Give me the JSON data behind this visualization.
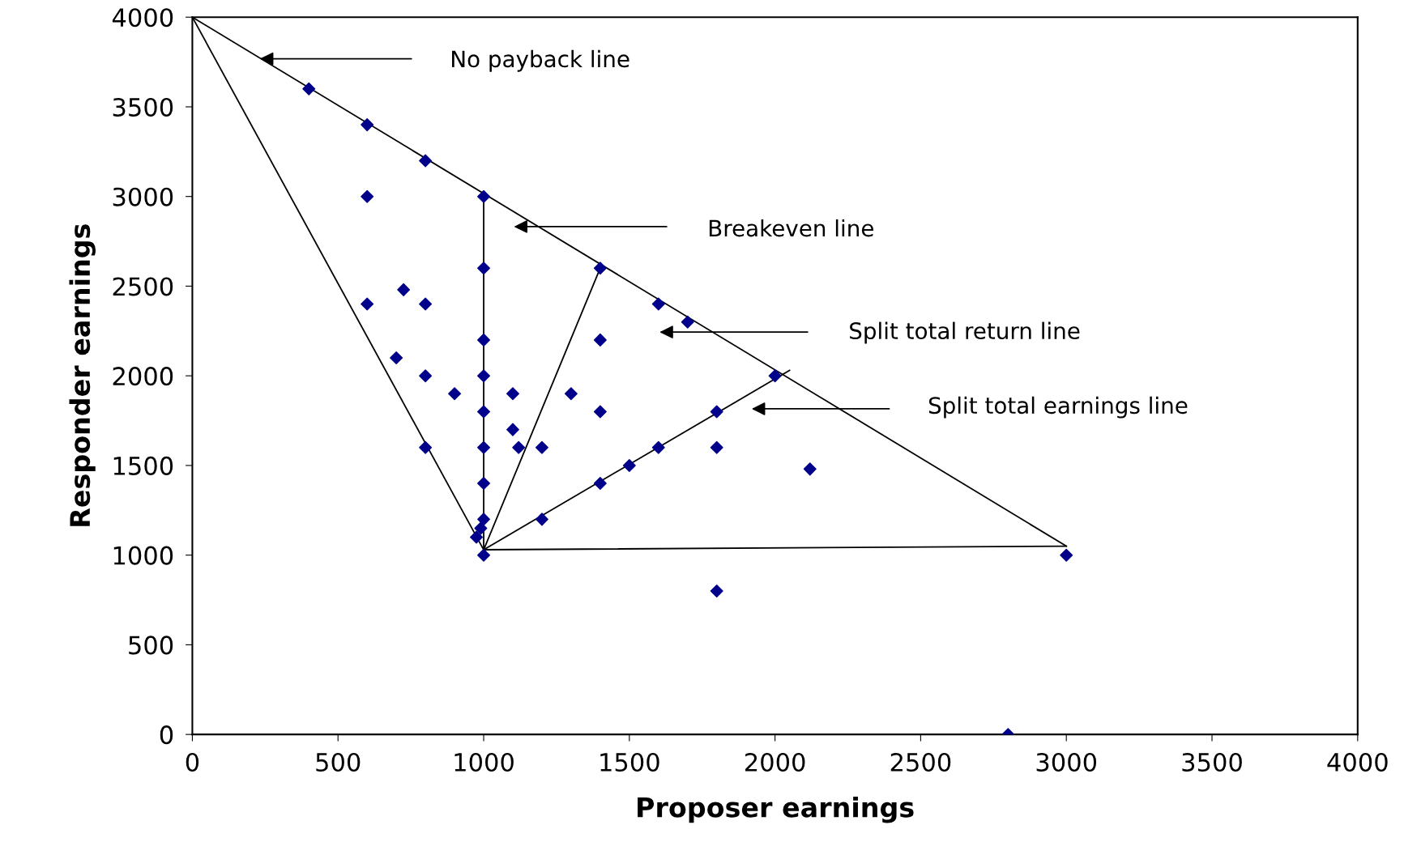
{
  "chart_data": {
    "type": "scatter",
    "xlabel": "Proposer earnings",
    "ylabel": "Responder earnings",
    "xlim": [
      0,
      4000
    ],
    "ylim": [
      0,
      4000
    ],
    "xticks": [
      0,
      500,
      1000,
      1500,
      2000,
      2500,
      3000,
      3500,
      4000
    ],
    "yticks": [
      0,
      500,
      1000,
      1500,
      2000,
      2500,
      3000,
      3500,
      4000
    ],
    "grid": false,
    "legend": false,
    "series": [
      {
        "type": "line",
        "color": "#000000",
        "marker": "none",
        "x": [
          0,
          3000
        ],
        "values": [
          4000,
          1050
        ]
      },
      {
        "type": "line",
        "color": "#000000",
        "marker": "none",
        "x": [
          0,
          1000
        ],
        "values": [
          4000,
          1030
        ]
      },
      {
        "type": "line",
        "color": "#000000",
        "marker": "none",
        "x": [
          1000,
          1000
        ],
        "values": [
          1030,
          3000
        ]
      },
      {
        "type": "line",
        "color": "#000000",
        "marker": "none",
        "x": [
          1000,
          1400
        ],
        "values": [
          1030,
          2600
        ]
      },
      {
        "type": "line",
        "color": "#000000",
        "marker": "none",
        "x": [
          1000,
          2050
        ],
        "values": [
          1030,
          2030
        ]
      },
      {
        "type": "line",
        "color": "#000000",
        "marker": "none",
        "x": [
          1000,
          3000
        ],
        "values": [
          1030,
          1050
        ]
      },
      {
        "color": "#00008b",
        "marker": "diamond",
        "x": [
          400,
          600,
          800,
          600,
          1000,
          1000,
          600,
          725,
          800,
          700,
          800,
          900,
          1000,
          1000,
          1000,
          1000,
          1000,
          1000,
          1000,
          975,
          990,
          800,
          1100,
          1100,
          1120,
          1200,
          1200,
          1300,
          1400,
          1400,
          1400,
          1400,
          1500,
          1600,
          1600,
          1700,
          1800,
          1800,
          1800,
          2000,
          2120,
          3000,
          2800
        ],
        "values": [
          3600,
          3400,
          3200,
          3000,
          3000,
          2600,
          2400,
          2480,
          2400,
          2100,
          2000,
          1900,
          2200,
          2000,
          1800,
          1600,
          1400,
          1200,
          1000,
          1100,
          1150,
          1600,
          1900,
          1700,
          1600,
          1600,
          1200,
          1900,
          2600,
          2200,
          1800,
          1400,
          1500,
          2400,
          1600,
          2300,
          1800,
          1600,
          800,
          2000,
          1480,
          1000,
          0
        ]
      }
    ],
    "annotations": [
      "No payback line",
      "Breakeven line",
      "Split total return line",
      "Split total earnings line"
    ]
  }
}
